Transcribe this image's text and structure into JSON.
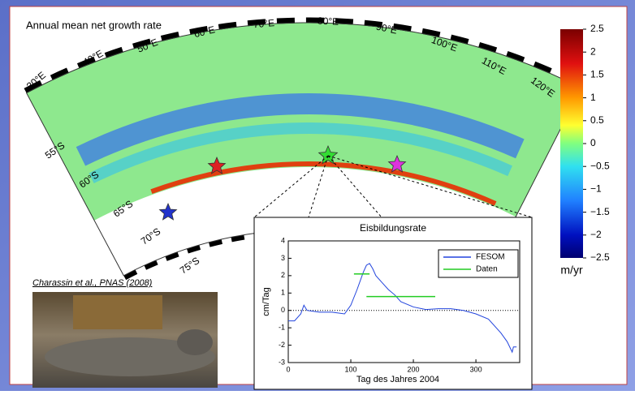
{
  "title": "Annual mean net growth rate",
  "map": {
    "lon_labels": [
      "30°E",
      "40°E",
      "50°E",
      "60°E",
      "70°E",
      "80°E",
      "90°E",
      "100°E",
      "110°E",
      "120°E"
    ],
    "lat_labels": [
      "55°S",
      "60°S",
      "65°S",
      "70°S",
      "75°S"
    ]
  },
  "colorbar": {
    "unit": "m/yr",
    "lim": [
      -2.5,
      2.5
    ],
    "ticks": [
      2.5,
      2,
      1.5,
      1,
      0.5,
      0,
      {
        "value": -0.5,
        "label": "−0.5"
      },
      {
        "value": -1,
        "label": "−1"
      },
      {
        "value": -1.5,
        "label": "−1.5"
      },
      {
        "value": -2,
        "label": "−2"
      },
      {
        "value": -2.5,
        "label": "−2.5"
      }
    ]
  },
  "citation": "Charassin et al., PNAS (2008)",
  "chart_data": {
    "type": "line",
    "title": "Eisbildungsrate",
    "x_label": "Tag des Jahres 2004",
    "y_label": "cm/Tag",
    "xlim": [
      0,
      370
    ],
    "xticks": [
      0,
      100,
      200,
      300
    ],
    "ylim": [
      -3,
      4
    ],
    "yticks": [
      -3,
      -2,
      -1,
      0,
      1,
      2,
      3,
      4
    ],
    "reference_line": 0,
    "legend": "upper right",
    "series": [
      {
        "name": "FESOM",
        "color": "#2244dd",
        "x": [
          0,
          10,
          20,
          25,
          30,
          50,
          70,
          90,
          100,
          110,
          120,
          125,
          130,
          135,
          140,
          150,
          160,
          170,
          180,
          200,
          220,
          240,
          260,
          280,
          300,
          320,
          340,
          350,
          358,
          360,
          365
        ],
        "values": [
          -0.6,
          -0.6,
          -0.2,
          0.3,
          0,
          -0.1,
          -0.1,
          -0.2,
          0.3,
          1.2,
          2.2,
          2.6,
          2.7,
          2.4,
          2.0,
          1.6,
          1.2,
          0.9,
          0.5,
          0.2,
          0.05,
          0.1,
          0.1,
          0,
          -0.2,
          -0.5,
          -1.3,
          -1.8,
          -2.4,
          -2.1,
          -2.1
        ]
      },
      {
        "name": "Daten",
        "color": "#22cc22",
        "x": [
          105,
          130,
          130,
          125,
          235
        ],
        "values": [
          2.1,
          2.1,
          null,
          0.8,
          0.8
        ]
      }
    ]
  }
}
